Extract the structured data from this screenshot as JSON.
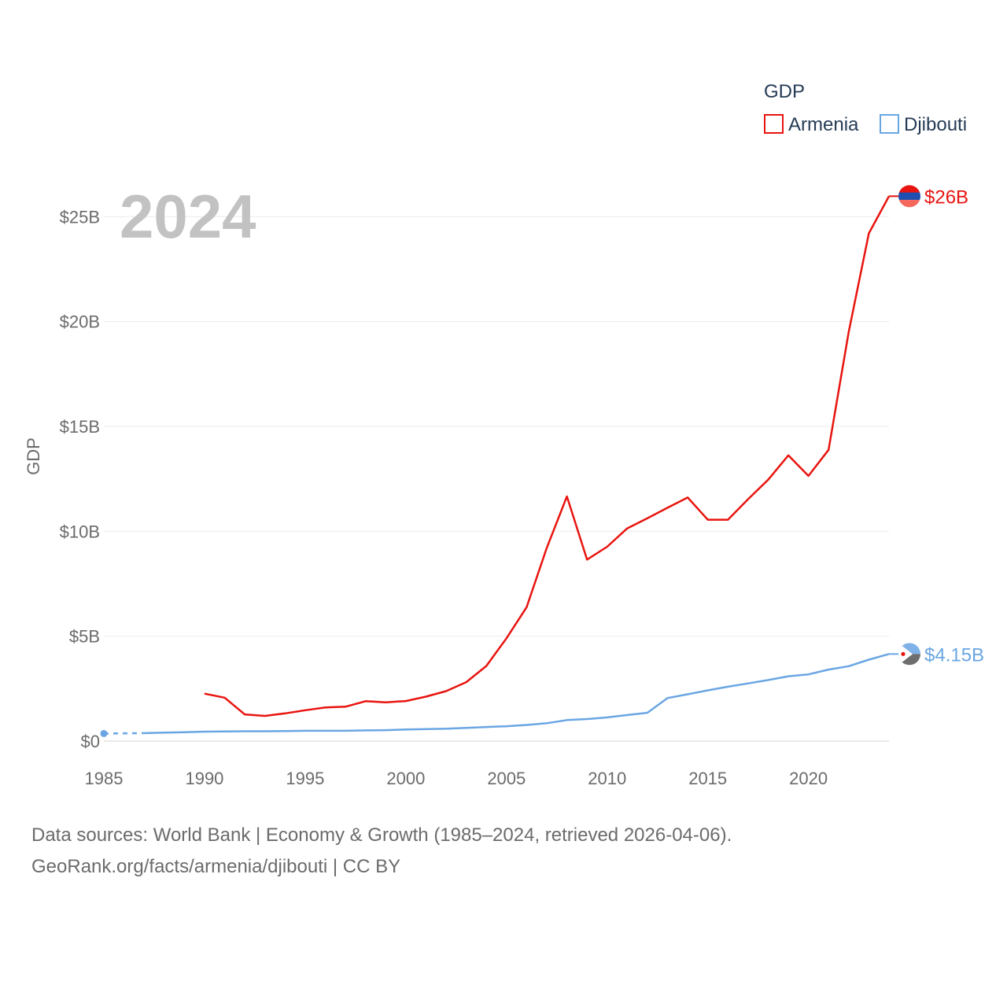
{
  "chart_data": {
    "type": "line",
    "title": "GDP",
    "ylabel": "GDP",
    "xlabel": "",
    "year_label": "2024",
    "xlim": [
      1985,
      2024
    ],
    "ylim": [
      0,
      26.5
    ],
    "x_ticks": [
      1985,
      1990,
      1995,
      2000,
      2005,
      2010,
      2015,
      2020
    ],
    "x_tick_labels": [
      "1985",
      "1990",
      "1995",
      "2000",
      "2005",
      "2010",
      "2015",
      "2020"
    ],
    "y_ticks": [
      0,
      5,
      10,
      15,
      20,
      25
    ],
    "y_tick_labels": [
      "$0",
      "$5B",
      "$10B",
      "$15B",
      "$20B",
      "$25B"
    ],
    "legend_title": "GDP",
    "legend_position": "top-right",
    "grid": true,
    "series": [
      {
        "name": "Armenia",
        "color": "#e8140f",
        "end_label": "$26B",
        "x": [
          1990,
          1991,
          1992,
          1993,
          1994,
          1995,
          1996,
          1997,
          1998,
          1999,
          2000,
          2001,
          2002,
          2003,
          2004,
          2005,
          2006,
          2007,
          2008,
          2009,
          2010,
          2011,
          2012,
          2013,
          2014,
          2015,
          2016,
          2017,
          2018,
          2019,
          2020,
          2021,
          2022,
          2023,
          2024
        ],
        "values": [
          2.26,
          2.07,
          1.27,
          1.2,
          1.32,
          1.47,
          1.6,
          1.64,
          1.9,
          1.85,
          1.91,
          2.12,
          2.38,
          2.81,
          3.58,
          4.9,
          6.38,
          9.21,
          11.66,
          8.65,
          9.26,
          10.14,
          10.62,
          11.12,
          11.61,
          10.55,
          10.55,
          11.53,
          12.46,
          13.62,
          12.64,
          13.88,
          19.5,
          24.2,
          25.97
        ]
      },
      {
        "name": "Djibouti",
        "color": "#6aa6e3",
        "end_label": "$4.15B",
        "dashed_until": 1987,
        "x": [
          1985,
          1986,
          1987,
          1988,
          1989,
          1990,
          1991,
          1992,
          1993,
          1994,
          1995,
          1996,
          1997,
          1998,
          1999,
          2000,
          2001,
          2002,
          2003,
          2004,
          2005,
          2006,
          2007,
          2008,
          2009,
          2010,
          2011,
          2012,
          2013,
          2014,
          2015,
          2016,
          2017,
          2018,
          2019,
          2020,
          2021,
          2022,
          2023,
          2024
        ],
        "values": [
          0.36,
          0.37,
          0.38,
          0.4,
          0.42,
          0.45,
          0.46,
          0.47,
          0.47,
          0.48,
          0.49,
          0.49,
          0.49,
          0.51,
          0.52,
          0.55,
          0.57,
          0.59,
          0.63,
          0.67,
          0.71,
          0.77,
          0.85,
          1.0,
          1.05,
          1.13,
          1.24,
          1.35,
          2.05,
          2.23,
          2.42,
          2.59,
          2.75,
          2.91,
          3.09,
          3.18,
          3.41,
          3.57,
          3.88,
          4.15
        ]
      }
    ]
  },
  "footer": {
    "line1": "Data sources: World Bank | Economy & Growth (1985–2024, retrieved 2026-04-06).",
    "line2": "GeoRank.org/facts/armenia/djibouti | CC BY"
  }
}
